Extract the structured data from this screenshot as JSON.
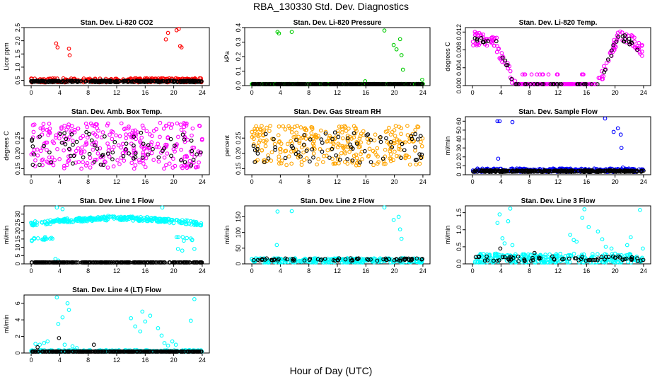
{
  "title": "RBA_130330  Std. Dev. Diagnostics",
  "xlabel": "Hour of Day (UTC)",
  "colors": {
    "mean": "#000000",
    "co2": "#ff0000",
    "pressure": "#00cc00",
    "temp": "#ff00ff",
    "rh": "#ffa500",
    "sample": "#0000ff",
    "line": "#00ffff"
  },
  "chart_data": [
    {
      "type": "scatter",
      "title": "Stan. Dev. Li-820 CO2",
      "ylabel": "Licor ppm",
      "xlim": [
        -1,
        25
      ],
      "ylim": [
        0.3,
        2.5
      ],
      "xticks": [
        "0",
        "4",
        "8",
        "12",
        "16",
        "20",
        "24"
      ],
      "yticks": [
        "0.5",
        "1.0",
        "1.5",
        "2.0",
        "2.5"
      ],
      "series": [
        {
          "color": "#ff0000",
          "band": [
            0.42,
            0.58
          ],
          "outliers": [
            [
              3.5,
              1.9
            ],
            [
              3.7,
              1.75
            ],
            [
              5.3,
              1.7
            ],
            [
              5.4,
              1.45
            ],
            [
              16.2,
              0.58
            ],
            [
              18.9,
              2.05
            ],
            [
              19.2,
              2.3
            ],
            [
              20.4,
              2.4
            ],
            [
              20.7,
              2.45
            ],
            [
              20.9,
              1.8
            ],
            [
              21.1,
              1.75
            ]
          ]
        },
        {
          "color": "#000000",
          "band": [
            0.43,
            0.49
          ],
          "outliers": []
        }
      ]
    },
    {
      "type": "scatter",
      "title": "Stan. Dev. Li-820 Pressure",
      "ylabel": "kPa",
      "xlim": [
        -1,
        25
      ],
      "ylim": [
        0.0,
        0.4
      ],
      "xticks": [
        "0",
        "4",
        "8",
        "12",
        "16",
        "20",
        "24"
      ],
      "yticks": [
        "0.0",
        "0.1",
        "0.2",
        "0.3",
        "0.4"
      ],
      "series": [
        {
          "color": "#00cc00",
          "band": [
            0.0,
            0.012
          ],
          "outliers": [
            [
              3.6,
              0.37
            ],
            [
              3.8,
              0.36
            ],
            [
              5.6,
              0.37
            ],
            [
              15.9,
              0.03
            ],
            [
              18.6,
              0.38
            ],
            [
              19.9,
              0.28
            ],
            [
              20.3,
              0.25
            ],
            [
              20.8,
              0.32
            ],
            [
              21.0,
              0.21
            ],
            [
              21.2,
              0.11
            ],
            [
              23.9,
              0.04
            ]
          ]
        },
        {
          "color": "#000000",
          "band": [
            0.0,
            0.006
          ],
          "outliers": []
        }
      ]
    },
    {
      "type": "scatter",
      "title": "Stan. Dev. Li-820 Temp.",
      "ylabel": "degrees C",
      "xlim": [
        -1,
        25
      ],
      "ylim": [
        0.0,
        0.013
      ],
      "xticks": [
        "0",
        "4",
        "8",
        "12",
        "16",
        "20",
        "24"
      ],
      "yticks": [
        "0.000",
        "0.004",
        "0.008",
        "0.012"
      ],
      "series": [
        {
          "color": "#ff00ff",
          "profile": "temp",
          "spread": 0.0016
        },
        {
          "color": "#000000",
          "profile": "temp",
          "spread": 0.0009,
          "hourly": true
        }
      ]
    },
    {
      "type": "scatter",
      "title": "Stan. Dev. Amb. Box Temp.",
      "ylabel": "degrees C",
      "xlim": [
        -1,
        25
      ],
      "ylim": [
        0.13,
        0.32
      ],
      "xticks": [
        "0",
        "4",
        "8",
        "12",
        "16",
        "20",
        "24"
      ],
      "yticks": [
        "0.15",
        "0.20",
        "0.25"
      ],
      "series": [
        {
          "color": "#ff00ff",
          "band": [
            0.15,
            0.3
          ],
          "outliers": []
        },
        {
          "color": "#000000",
          "band": [
            0.16,
            0.27
          ],
          "outliers": [],
          "hourly": true
        }
      ]
    },
    {
      "type": "scatter",
      "title": "Stan. Dev. Gas Stream RH",
      "ylabel": "percent",
      "xlim": [
        -1,
        25
      ],
      "ylim": [
        0.13,
        0.32
      ],
      "xticks": [
        "0",
        "4",
        "8",
        "12",
        "16",
        "20",
        "24"
      ],
      "yticks": [
        "0.15",
        "0.20",
        "0.25"
      ],
      "series": [
        {
          "color": "#ffa500",
          "band": [
            0.16,
            0.29
          ],
          "outliers": []
        },
        {
          "color": "#000000",
          "band": [
            0.17,
            0.27
          ],
          "outliers": [],
          "hourly": true
        }
      ]
    },
    {
      "type": "scatter",
      "title": "Stan. Dev. Sample Flow",
      "ylabel": "ml/min",
      "xlim": [
        -1,
        25
      ],
      "ylim": [
        0,
        65
      ],
      "xticks": [
        "0",
        "4",
        "8",
        "12",
        "16",
        "20",
        "24"
      ],
      "yticks": [
        "0",
        "10",
        "20",
        "30",
        "40",
        "50",
        "60"
      ],
      "series": [
        {
          "color": "#0000ff",
          "band": [
            3,
            7
          ],
          "outliers": [
            [
              3.5,
              60
            ],
            [
              3.8,
              60
            ],
            [
              5.6,
              59
            ],
            [
              3.6,
              18
            ],
            [
              18.6,
              63
            ],
            [
              19.8,
              48
            ],
            [
              20.4,
              52
            ],
            [
              20.8,
              45
            ],
            [
              20.9,
              30
            ],
            [
              21.1,
              8
            ]
          ]
        },
        {
          "color": "#000000",
          "band": [
            3,
            5
          ],
          "outliers": []
        }
      ]
    },
    {
      "type": "scatter",
      "title": "Stan. Dev. Line 1 Flow",
      "ylabel": "ml/min",
      "xlim": [
        -1,
        25
      ],
      "ylim": [
        0,
        35
      ],
      "xticks": [
        "0",
        "4",
        "8",
        "12",
        "16",
        "20",
        "24"
      ],
      "yticks": [
        "0",
        "5",
        "10",
        "15",
        "20",
        "25",
        "30"
      ],
      "series": [
        {
          "color": "#00ffff",
          "profile": "line1",
          "outliers": [
            [
              3.6,
              34
            ],
            [
              4.4,
              33
            ],
            [
              18.4,
              34
            ],
            [
              10.8,
              29
            ],
            [
              3.4,
              3
            ],
            [
              3.8,
              2
            ],
            [
              20.6,
              9
            ],
            [
              21.2,
              8
            ],
            [
              22.9,
              9
            ],
            [
              2.5,
              25
            ]
          ]
        },
        {
          "color": "#000000",
          "band": [
            0.2,
            0.8
          ],
          "outliers": []
        }
      ]
    },
    {
      "type": "scatter",
      "title": "Stan. Dev. Line 2 Flow",
      "ylabel": "ml/min",
      "xlim": [
        -1,
        25
      ],
      "ylim": [
        0,
        185
      ],
      "xticks": [
        "0",
        "4",
        "8",
        "12",
        "16",
        "20",
        "24"
      ],
      "yticks": [
        "0",
        "50",
        "100",
        "150"
      ],
      "series": [
        {
          "color": "#00ffff",
          "band": [
            3,
            18
          ],
          "outliers": [
            [
              3.6,
              167
            ],
            [
              5.6,
              168
            ],
            [
              3.5,
              60
            ],
            [
              18.6,
              180
            ],
            [
              19.9,
              140
            ],
            [
              20.6,
              150
            ],
            [
              20.8,
              110
            ],
            [
              21.0,
              80
            ]
          ]
        },
        {
          "color": "#000000",
          "band": [
            10,
            18
          ],
          "outliers": [],
          "hourly": true
        }
      ]
    },
    {
      "type": "scatter",
      "title": "Stan. Dev. Line 3 Flow",
      "ylabel": "ml/min",
      "xlim": [
        -1,
        25
      ],
      "ylim": [
        0,
        1.7
      ],
      "xticks": [
        "0",
        "4",
        "8",
        "12",
        "16",
        "20",
        "24"
      ],
      "yticks": [
        "0.0",
        "0.5",
        "1.0",
        "1.5"
      ],
      "series": [
        {
          "color": "#00ffff",
          "band": [
            0.02,
            0.3
          ],
          "outliers": [
            [
              3.5,
              1.2
            ],
            [
              3.8,
              1.45
            ],
            [
              4.2,
              0.75
            ],
            [
              4.5,
              0.6
            ],
            [
              5.0,
              1.25
            ],
            [
              5.3,
              1.62
            ],
            [
              3.3,
              0.3
            ],
            [
              5.6,
              0.55
            ],
            [
              13.7,
              0.85
            ],
            [
              14.2,
              0.7
            ],
            [
              14.6,
              0.65
            ],
            [
              15.4,
              1.35
            ],
            [
              15.7,
              1.6
            ],
            [
              16.3,
              1.08
            ],
            [
              17.6,
              0.95
            ],
            [
              18.2,
              0.72
            ],
            [
              18.7,
              0.5
            ],
            [
              19.5,
              0.45
            ],
            [
              20.0,
              0.3
            ],
            [
              21.7,
              0.55
            ],
            [
              22.2,
              0.78
            ],
            [
              23.5,
              1.58
            ],
            [
              23.9,
              0.45
            ]
          ]
        },
        {
          "color": "#000000",
          "band": [
            0.08,
            0.22
          ],
          "outliers": [
            [
              3.9,
              0.45
            ],
            [
              8.7,
              0.32
            ]
          ],
          "hourly": true
        }
      ]
    },
    {
      "type": "scatter",
      "title": "Stan. Dev. Line 4 (LT) Flow",
      "ylabel": "ml/min",
      "xlim": [
        -1,
        25
      ],
      "ylim": [
        0,
        7
      ],
      "xticks": [
        "0",
        "4",
        "8",
        "12",
        "16",
        "20",
        "24"
      ],
      "yticks": [
        "0",
        "2",
        "4",
        "6"
      ],
      "series": [
        {
          "color": "#00ffff",
          "band": [
            0.0,
            0.35
          ],
          "outliers": [
            [
              0.6,
              1.1
            ],
            [
              1.2,
              1.0
            ],
            [
              1.8,
              1.2
            ],
            [
              2.3,
              1.4
            ],
            [
              3.6,
              6.7
            ],
            [
              4.4,
              4.3
            ],
            [
              5.1,
              6.0
            ],
            [
              5.3,
              5.2
            ],
            [
              3.8,
              3.5
            ],
            [
              4.7,
              1.0
            ],
            [
              5.8,
              0.8
            ],
            [
              6.4,
              0.6
            ],
            [
              14.0,
              4.2
            ],
            [
              14.6,
              3.2
            ],
            [
              15.3,
              2.6
            ],
            [
              15.6,
              5.0
            ],
            [
              16.0,
              3.8
            ],
            [
              16.7,
              4.5
            ],
            [
              17.8,
              3.0
            ],
            [
              18.3,
              2.1
            ],
            [
              18.7,
              1.2
            ],
            [
              19.2,
              0.9
            ],
            [
              19.8,
              1.4
            ],
            [
              20.3,
              1.0
            ],
            [
              22.4,
              3.9
            ],
            [
              22.9,
              6.5
            ]
          ]
        },
        {
          "color": "#000000",
          "band": [
            0.0,
            0.15
          ],
          "outliers": [
            [
              3.9,
              1.8
            ],
            [
              8.8,
              1.0
            ],
            [
              0.9,
              0.7
            ]
          ]
        }
      ]
    }
  ]
}
